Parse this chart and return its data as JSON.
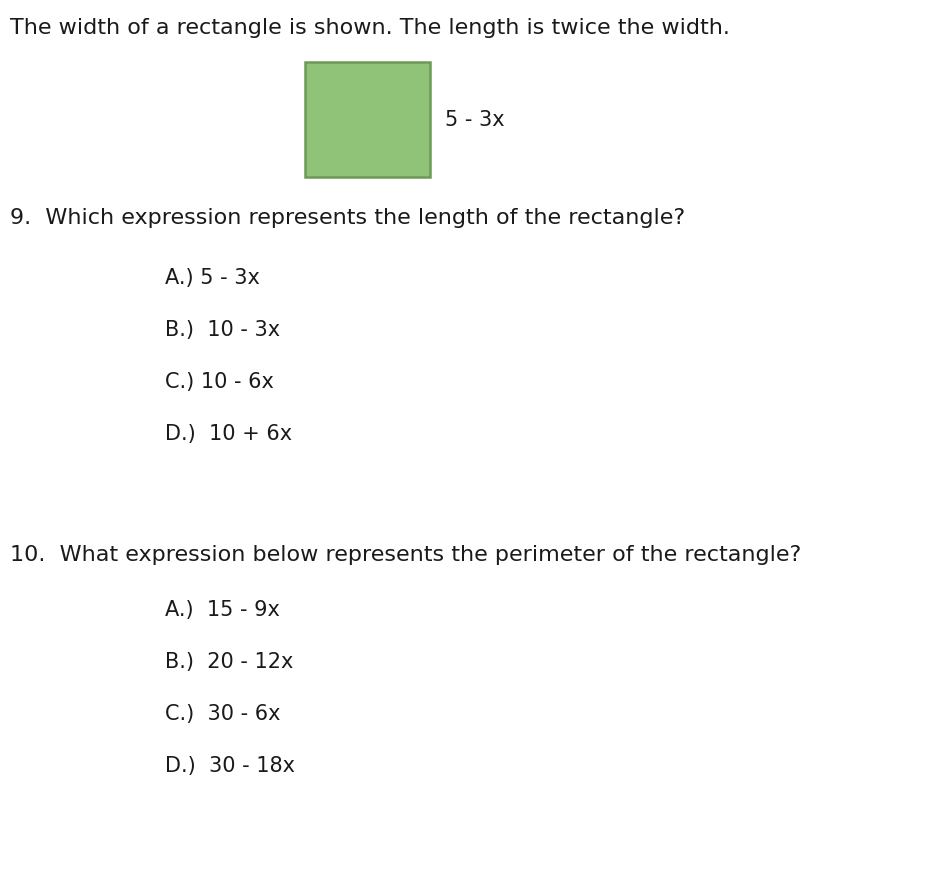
{
  "background_color": "#ffffff",
  "header_text": "The width of a rectangle is shown. The length is twice the width.",
  "rect_fill_color": "#90c278",
  "rect_edge_color": "#6a9a55",
  "rect_label": "5 - 3x",
  "q9_text": "9.  Which expression represents the length of the rectangle?",
  "q9_options": [
    "A.) 5 - 3x",
    "B.)  10 - 3x",
    "C.) 10 - 6x",
    "D.)  10 + 6x"
  ],
  "q10_text": "10.  What expression below represents the perimeter of the rectangle?",
  "q10_options": [
    "A.)  15 - 9x",
    "B.)  20 - 12x",
    "C.)  30 - 6x",
    "D.)  30 - 18x"
  ],
  "header_fontsize": 16,
  "question_fontsize": 16,
  "option_fontsize": 15,
  "label_fontsize": 15,
  "font_color": "#1a1a1a"
}
